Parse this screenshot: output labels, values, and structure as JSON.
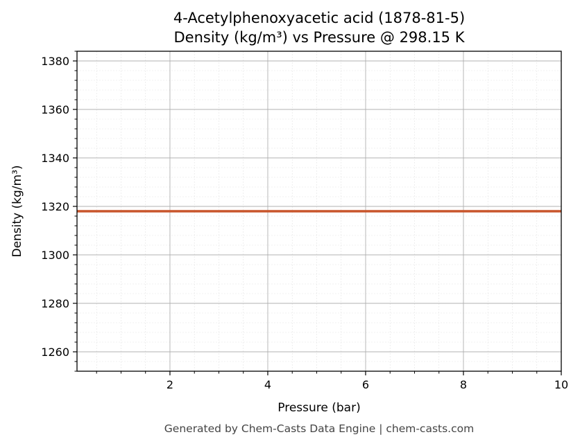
{
  "chart_data": {
    "type": "line",
    "title": "4-Acetylphenoxyacetic acid (1878-81-5)",
    "subtitle": "Density (kg/m³) vs Pressure @ 298.15 K",
    "xlabel": "Pressure (bar)",
    "ylabel": "Density (kg/m³)",
    "xlim": [
      0.1,
      10
    ],
    "ylim": [
      1252,
      1384
    ],
    "xticks": [
      2,
      4,
      6,
      8,
      10
    ],
    "yticks": [
      1260,
      1280,
      1300,
      1320,
      1340,
      1360,
      1380
    ],
    "grid": true,
    "series": [
      {
        "color": "#c8552b",
        "x": [
          0.1,
          10
        ],
        "y": [
          1318,
          1318
        ]
      }
    ]
  },
  "footer": "Generated by Chem-Casts Data Engine | chem-casts.com"
}
